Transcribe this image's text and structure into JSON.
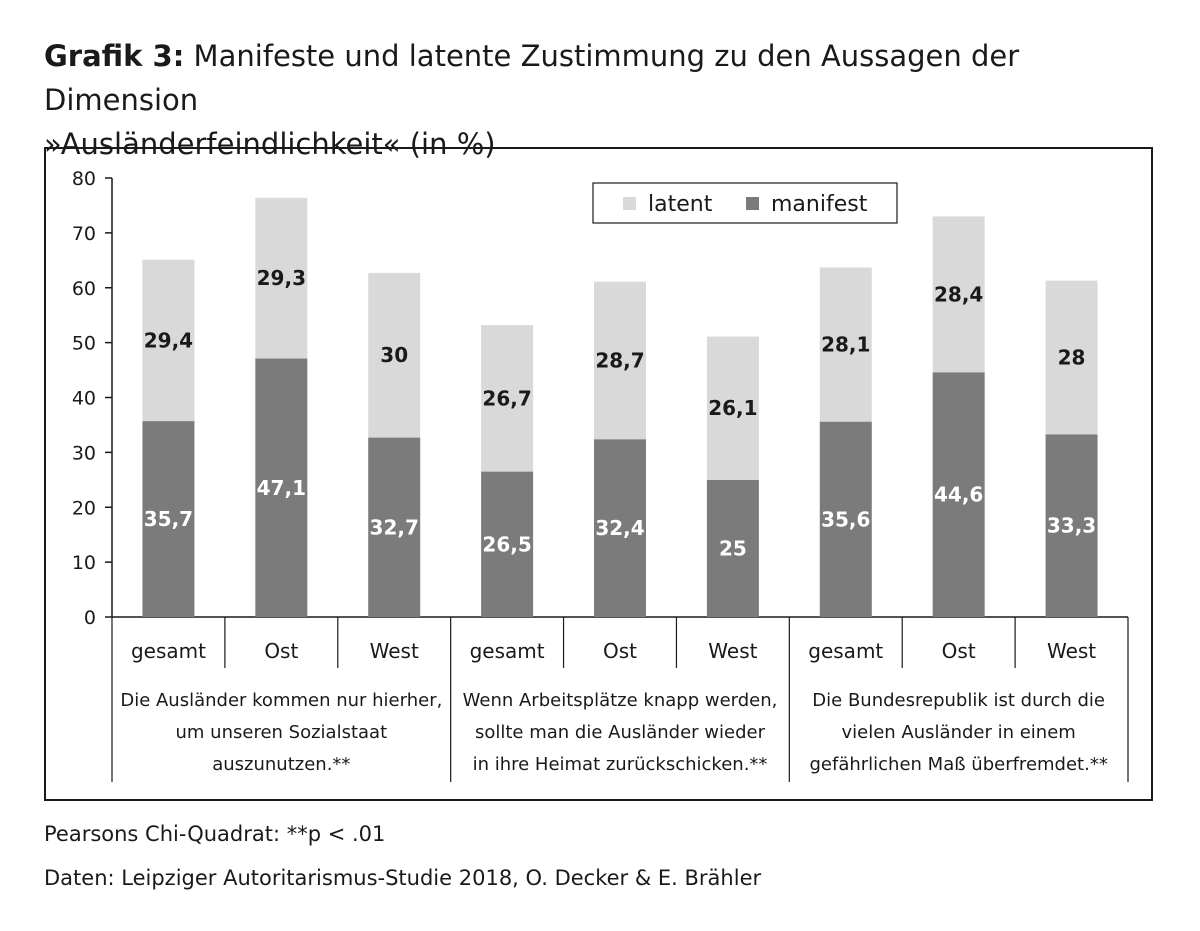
{
  "title": {
    "prefix": "Grafik 3:",
    "text_line1": "Manifeste und latente Zustimmung zu den Aussagen der Dimension",
    "text_line2": "»Ausländerfeindlichkeit« (in %)"
  },
  "chart_data": {
    "type": "bar",
    "stacked": true,
    "ylim": [
      0,
      80
    ],
    "yticks": [
      0,
      10,
      20,
      30,
      40,
      50,
      60,
      70,
      80
    ],
    "categories": [
      "gesamt",
      "Ost",
      "West",
      "gesamt",
      "Ost",
      "West",
      "gesamt",
      "Ost",
      "West"
    ],
    "groups": [
      {
        "label_lines": [
          "Die Ausländer kommen nur hierher,",
          "um unseren Sozialstaat",
          "auszunutzen.**"
        ]
      },
      {
        "label_lines": [
          "Wenn Arbeitsplätze knapp werden,",
          "sollte man die Ausländer wieder",
          "in ihre Heimat zurückschicken.**"
        ]
      },
      {
        "label_lines": [
          "Die Bundesrepublik ist durch die",
          "vielen Ausländer in einem",
          "gefährlichen Maß überfremdet.**"
        ]
      }
    ],
    "series": [
      {
        "name": "manifest",
        "color": "#7b7b7b",
        "values": [
          35.7,
          47.1,
          32.7,
          26.5,
          32.4,
          25,
          35.6,
          44.6,
          33.3
        ],
        "labels": [
          "35,7",
          "47,1",
          "32,7",
          "26,5",
          "32,4",
          "25",
          "35,6",
          "44,6",
          "33,3"
        ]
      },
      {
        "name": "latent",
        "color": "#d9d9d9",
        "values": [
          29.4,
          29.3,
          30,
          26.7,
          28.7,
          26.1,
          28.1,
          28.4,
          28
        ],
        "labels": [
          "29,4",
          "29,3",
          "30",
          "26,7",
          "28,7",
          "26,1",
          "28,1",
          "28,4",
          "28"
        ]
      }
    ],
    "legend": {
      "position": "top-right",
      "order": [
        "latent",
        "manifest"
      ]
    },
    "grid": false
  },
  "notes": [
    "Pearsons Chi-Quadrat: **p < .01",
    "Daten: Leipziger Autoritarismus-Studie 2018, O. Decker & E. Brähler"
  ]
}
